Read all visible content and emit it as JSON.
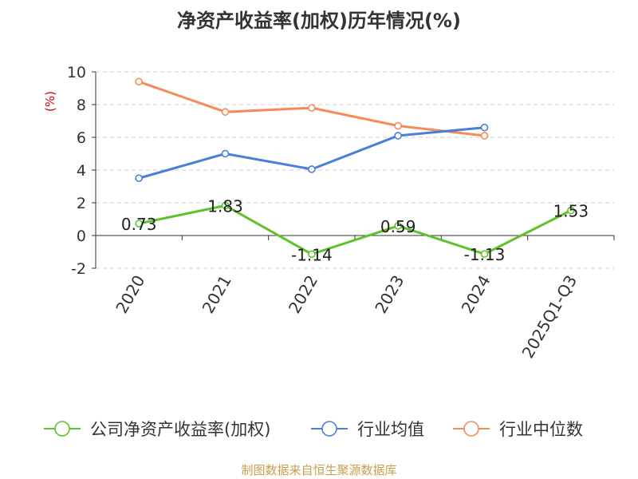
{
  "chart_data": {
    "type": "line",
    "title": "净资产收益率(加权)历年情况(%)",
    "ylabel": "(%)",
    "xlabel": "",
    "categories": [
      "2020",
      "2021",
      "2022",
      "2023",
      "2024",
      "2025Q1-Q3"
    ],
    "ylim": [
      -2,
      10
    ],
    "yticks": [
      -2,
      0,
      2,
      4,
      6,
      8,
      10
    ],
    "series": [
      {
        "name": "公司净资产收益率(加权)",
        "color": "#5ec22b",
        "values": [
          0.73,
          1.83,
          -1.14,
          0.59,
          -1.13,
          1.53
        ],
        "labels": [
          "0.73",
          "1.83",
          "-1.14",
          "0.59",
          "-1.13",
          "1.53"
        ]
      },
      {
        "name": "行业均值",
        "color": "#4a7ed9",
        "values": [
          3.5,
          5.0,
          4.05,
          6.1,
          6.6,
          null
        ]
      },
      {
        "name": "行业中位数",
        "color": "#f58b58",
        "values": [
          9.4,
          7.55,
          7.8,
          6.7,
          6.1,
          null
        ]
      }
    ],
    "grid": true,
    "legend": "bottom"
  },
  "source": "制图数据来自恒生聚源数据库",
  "colors": {
    "title": "#333333",
    "ylabel": "#cc0000",
    "source": "#c8a050",
    "grid": "#cccccc",
    "axis": "#333333"
  }
}
